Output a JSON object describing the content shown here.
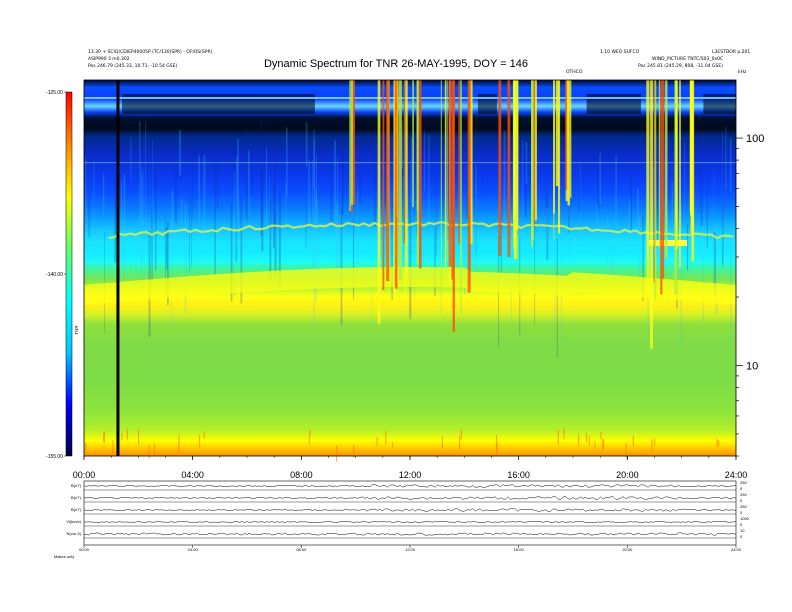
{
  "header": {
    "left_line1": "13.30 + SCIQ(CDIEP40005P (TC/130(SPR) - OFIOS(SPR)",
    "left_line2": "ASIP990 3 m0.302",
    "left_pos": "Pos    246.79 (245.33, 10.71, -10.54 GSE)",
    "right_line1": "1.10 WEO SUFCO",
    "right_line2": "WIND_PICTURE TNTC/S03_0x0C",
    "right_pos": "Pos    245.81 (245.29, 808, -11.04 GSE)",
    "right_corner_line1": "L3ESTDOR p.201",
    "right_corner_line2": "kHz",
    "marker_label": "OTHCO"
  },
  "chart_data": {
    "type": "heatmap",
    "title": "Dynamic Spectrum for TNR 26-MAY-1995, DOY = 146",
    "x_ticks": [
      "00:00",
      "04:00",
      "08:00",
      "12:00",
      "16:00",
      "20:00",
      "24:00"
    ],
    "x_range_hours": [
      0,
      24
    ],
    "y_right_ticks": [
      {
        "label": "100",
        "value_khz": 100
      },
      {
        "label": "10",
        "value_khz": 10
      }
    ],
    "y_scale": "log",
    "colorbar": {
      "label": "TNR",
      "ticks": [
        {
          "label": "-125.00",
          "value": -125
        },
        {
          "label": "-140.00",
          "value": -140
        },
        {
          "label": "-155.00",
          "value": -155
        }
      ],
      "range": [
        -155,
        -125
      ],
      "colors": [
        "#000044",
        "#0000ff",
        "#00c8ff",
        "#00ffff",
        "#66ff66",
        "#ffff00",
        "#ff8800",
        "#ff0000"
      ]
    },
    "vertical_marker_hour": 1.25,
    "bands": [
      {
        "name": "dark-top",
        "color": "#000a1e"
      },
      {
        "name": "blue-upper",
        "color": "#0a3cff"
      },
      {
        "name": "cyan-mid",
        "color": "#14dcff"
      },
      {
        "name": "yellow-plasma-line",
        "color": "#ffff00"
      },
      {
        "name": "green-lower",
        "color": "#7dde46"
      },
      {
        "name": "orange-bottom",
        "color": "#ff8c00"
      }
    ]
  },
  "aux_panels": {
    "labels": [
      "B(nT)",
      "B(nT)",
      "B(nT)",
      "Vi(km/s)",
      "N(cm-3)"
    ],
    "right_ticks": [
      [
        "250",
        "0"
      ],
      [
        "250",
        "0"
      ],
      [
        "250",
        "0"
      ],
      [
        "1000",
        "0"
      ],
      [
        "10",
        "0"
      ]
    ],
    "x_ticks": [
      "00:00",
      "04:00",
      "08:00",
      "12:00",
      "16:00",
      "20:00",
      "24:00"
    ],
    "footer_left": "Makes   only"
  }
}
